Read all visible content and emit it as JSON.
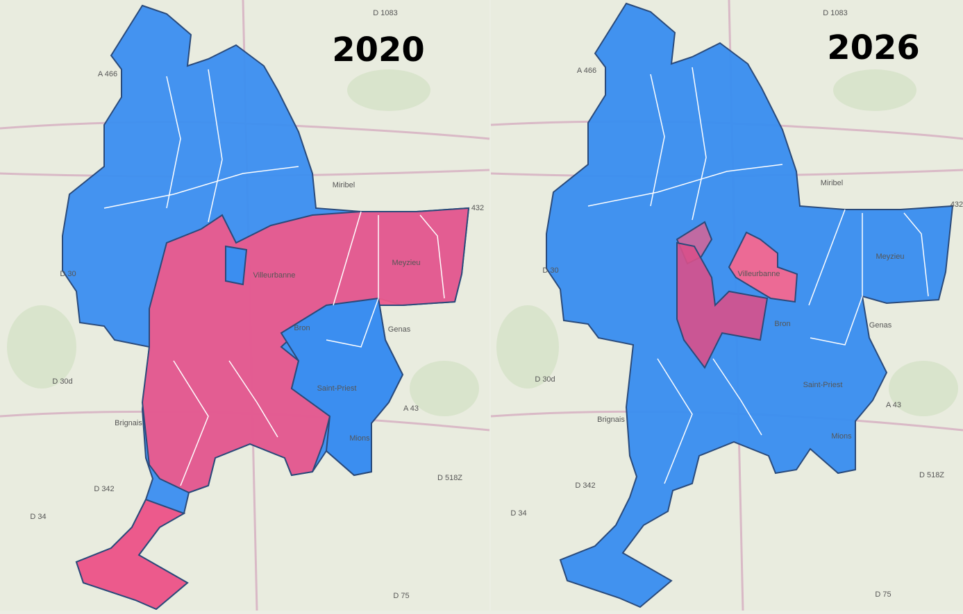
{
  "maps": [
    {
      "title": "2020",
      "labels": [
        "D 1083",
        "A 466",
        "Miribel",
        "Genas",
        "Brignais",
        "D 30",
        "D 30d",
        "D 342",
        "D 34",
        "D 75",
        "D 518Z",
        "A 43",
        "432",
        "Meyzieu",
        "Saint-Priest",
        "Bron",
        "Mions",
        "Villeurbanne"
      ]
    },
    {
      "title": "2026",
      "labels": [
        "D 1083",
        "A 466",
        "Miribel",
        "Genas",
        "Brignais",
        "D 30",
        "D 30d",
        "D 342",
        "D 34",
        "D 75",
        "D 518Z",
        "A 43",
        "432",
        "Meyzieu",
        "Saint-Priest",
        "Bron",
        "Mions",
        "Villeurbanne"
      ]
    }
  ]
}
